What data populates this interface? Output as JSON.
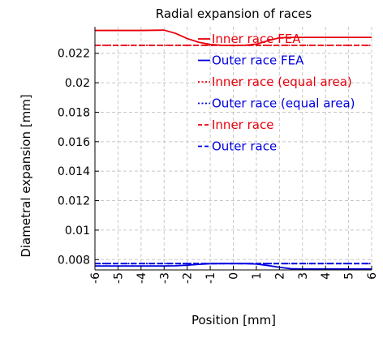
{
  "chart_data": {
    "type": "line",
    "title": "Radial expansion of races",
    "xlabel": "Position [mm]",
    "ylabel": "Diametral expansion [mm]",
    "xlim": [
      -6,
      6
    ],
    "ylim": [
      0.0073,
      0.0238
    ],
    "x_ticks": [
      -6,
      -5,
      -4,
      -3,
      -2,
      -1,
      0,
      1,
      2,
      3,
      4,
      5,
      6
    ],
    "x_tick_labels": [
      "-6",
      "-5",
      "-4",
      "-3",
      "-2",
      "-1",
      "0",
      "1",
      "2",
      "3",
      "4",
      "5",
      "6"
    ],
    "y_ticks": [
      0.008,
      0.01,
      0.012,
      0.014,
      0.016,
      0.018,
      0.02,
      0.022
    ],
    "y_tick_labels": [
      "0.008",
      "0.01",
      "0.012",
      "0.014",
      "0.016",
      "0.018",
      "0.02",
      "0.022"
    ],
    "grid": true,
    "legend_position": "top-right",
    "series": [
      {
        "name": "Inner race FEA",
        "color": "#e8000b",
        "style": "solid",
        "x": [
          -6,
          -5,
          -4,
          -3,
          -2.5,
          -2,
          -1.5,
          -1,
          -0.5,
          0,
          0.5,
          1,
          1.5,
          2,
          2.5,
          3,
          4,
          5,
          6
        ],
        "y": [
          0.02355,
          0.02355,
          0.02355,
          0.02357,
          0.02335,
          0.023,
          0.02275,
          0.0226,
          0.02254,
          0.02252,
          0.02254,
          0.02262,
          0.02285,
          0.02305,
          0.02308,
          0.02308,
          0.02308,
          0.02308,
          0.02308
        ]
      },
      {
        "name": "Outer race FEA",
        "color": "#0000e0",
        "style": "solid",
        "x": [
          -6,
          -5,
          -4,
          -3,
          -2.5,
          -2,
          -1.5,
          -1,
          -0.5,
          0,
          0.5,
          1,
          1.5,
          2,
          2.5,
          3,
          4,
          5,
          6
        ],
        "y": [
          0.00757,
          0.00757,
          0.00757,
          0.00757,
          0.00758,
          0.00762,
          0.00768,
          0.00772,
          0.00773,
          0.00773,
          0.00773,
          0.0077,
          0.0076,
          0.00748,
          0.00738,
          0.00736,
          0.00736,
          0.00736,
          0.00736
        ]
      },
      {
        "name": "Inner race (equal area)",
        "color": "#e8000b",
        "style": "dotted",
        "x": [
          -6,
          6
        ],
        "y": [
          0.02254,
          0.02254
        ]
      },
      {
        "name": "Outer race (equal area)",
        "color": "#0000e0",
        "style": "dotted",
        "x": [
          -6,
          6
        ],
        "y": [
          0.00773,
          0.00773
        ]
      },
      {
        "name": "Inner race",
        "color": "#e8000b",
        "style": "dashed",
        "x": [
          -6,
          6
        ],
        "y": [
          0.02254,
          0.02254
        ]
      },
      {
        "name": "Outer race",
        "color": "#0000e0",
        "style": "dashed",
        "x": [
          -6,
          6
        ],
        "y": [
          0.00773,
          0.00773
        ]
      }
    ]
  }
}
